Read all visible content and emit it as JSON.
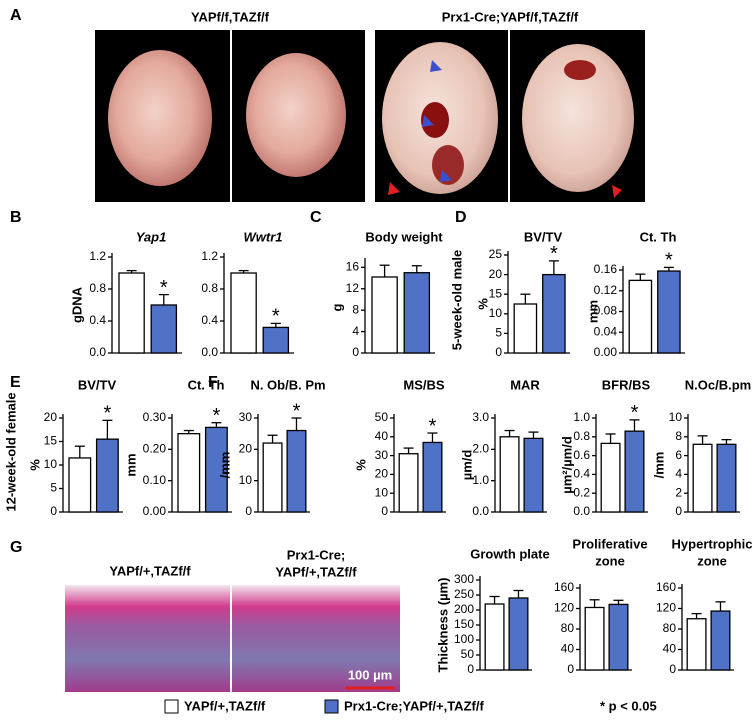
{
  "panel_labels": [
    "A",
    "B",
    "C",
    "D",
    "E",
    "F",
    "G"
  ],
  "photo_labels": {
    "a_control": "YAPf/f,TAZf/f",
    "a_mutant": "Prx1-Cre;YAPf/f,TAZf/f",
    "g_control": "YAPf/+,TAZf/f",
    "g_mutant": [
      "Prx1-Cre;",
      "YAPf/+,TAZf/f"
    ],
    "scale_bar": "100 µm"
  },
  "row_labels": [
    "5-week-old male",
    "12-week-old female"
  ],
  "legend": {
    "entries": [
      {
        "name": "YAPf/+,TAZf/f",
        "color": "#ffffff"
      },
      {
        "name": "Prx1-Cre;YAPf/+,TAZf/f",
        "color": "#4f72c6"
      }
    ],
    "note": "* p < 0.05"
  },
  "chart_data": [
    {
      "type": "bar",
      "title": "Yap1",
      "title_italic": true,
      "ylabel": "gDNA",
      "values": [
        1.0,
        0.6
      ],
      "errors": [
        0.03,
        0.13
      ],
      "annotations": [
        null,
        "*"
      ],
      "ylim": [
        0,
        1.2
      ],
      "yticks": [
        {
          "value": 0,
          "label": "0.0"
        },
        0.4,
        0.8,
        1.2
      ]
    },
    {
      "type": "bar",
      "title": "Wwtr1",
      "title_italic": true,
      "values": [
        1.0,
        0.32
      ],
      "errors": [
        0.03,
        0.05
      ],
      "annotations": [
        null,
        "*"
      ],
      "ylim": [
        0,
        1.2
      ],
      "yticks": [
        {
          "value": 0,
          "label": "0.0"
        },
        0.4,
        0.8,
        1.2
      ]
    },
    {
      "type": "bar",
      "title": "Body weight",
      "ylabel": "g",
      "values": [
        14.2,
        15.0
      ],
      "errors": [
        2.2,
        1.3
      ],
      "annotations": [
        null,
        null
      ],
      "ylim": [
        0,
        17
      ],
      "yticks": [
        0,
        4,
        8,
        12,
        16
      ]
    },
    {
      "type": "bar",
      "title": "BV/TV",
      "ylabel": "%",
      "values": [
        12.5,
        20
      ],
      "errors": [
        2.5,
        3.5
      ],
      "annotations": [
        null,
        "*"
      ],
      "ylim": [
        0,
        25
      ],
      "yticks": [
        0,
        5,
        10,
        15,
        20,
        25
      ]
    },
    {
      "type": "bar",
      "title": "Ct. Th",
      "ylabel": "mm",
      "values": [
        0.14,
        0.158
      ],
      "errors": [
        0.012,
        0.007
      ],
      "annotations": [
        null,
        "*"
      ],
      "ylim": [
        0,
        0.16
      ],
      "yticks": [
        {
          "value": 0,
          "label": "0.00"
        },
        0.04,
        0.08,
        0.12,
        0.16
      ]
    },
    {
      "type": "bar",
      "title": "BV/TV",
      "ylabel": "%",
      "values": [
        11.5,
        15.5
      ],
      "errors": [
        2.5,
        4
      ],
      "annotations": [
        null,
        "*"
      ],
      "ylim": [
        0,
        20
      ],
      "yticks": [
        0,
        5,
        10,
        15,
        20
      ]
    },
    {
      "type": "bar",
      "title": "Ct. Th",
      "ylabel": "mm",
      "values": [
        0.25,
        0.27
      ],
      "errors": [
        0.01,
        0.015
      ],
      "annotations": [
        null,
        "*"
      ],
      "ylim": [
        0,
        0.3
      ],
      "yticks": [
        {
          "value": 0,
          "label": "0.00"
        },
        {
          "value": 0.1,
          "label": "0.10"
        },
        {
          "value": 0.2,
          "label": "0.20"
        },
        {
          "value": 0.3,
          "label": "0.30"
        }
      ]
    },
    {
      "type": "bar",
      "title": "N. Ob/B. Pm",
      "ylabel": "/mm",
      "values": [
        22,
        26
      ],
      "errors": [
        2.5,
        4
      ],
      "annotations": [
        null,
        "*"
      ],
      "ylim": [
        0,
        30
      ],
      "yticks": [
        0,
        10,
        20,
        30
      ]
    },
    {
      "type": "bar",
      "title": "MS/BS",
      "ylabel": "%",
      "values": [
        31,
        37
      ],
      "errors": [
        3,
        5
      ],
      "annotations": [
        null,
        "*"
      ],
      "ylim": [
        0,
        50
      ],
      "yticks": [
        0,
        10,
        20,
        30,
        40,
        50
      ]
    },
    {
      "type": "bar",
      "title": "MAR",
      "ylabel": "µm/d",
      "values": [
        2.4,
        2.35
      ],
      "errors": [
        0.2,
        0.2
      ],
      "annotations": [
        null,
        null
      ],
      "ylim": [
        0,
        3
      ],
      "yticks": [
        {
          "value": 0,
          "label": "0.0"
        },
        {
          "value": 1,
          "label": "1.0"
        },
        {
          "value": 2,
          "label": "2.0"
        },
        {
          "value": 3,
          "label": "3.0"
        }
      ]
    },
    {
      "type": "bar",
      "title": "BFR/BS",
      "ylabel": "µm²/µm/d",
      "values": [
        0.73,
        0.86
      ],
      "errors": [
        0.1,
        0.12
      ],
      "annotations": [
        null,
        "*"
      ],
      "ylim": [
        0,
        1
      ],
      "yticks": [
        {
          "value": 0,
          "label": "0.0"
        },
        0.2,
        0.4,
        0.6,
        0.8,
        {
          "value": 1,
          "label": "1.0"
        }
      ]
    },
    {
      "type": "bar",
      "title": "N.Oc/B.pm",
      "ylabel": "/mm",
      "values": [
        7.2,
        7.2
      ],
      "errors": [
        0.9,
        0.5
      ],
      "annotations": [
        null,
        null
      ],
      "ylim": [
        0,
        10
      ],
      "yticks": [
        0,
        2,
        4,
        6,
        8,
        10
      ]
    },
    {
      "type": "bar",
      "title": [
        "Growth plate"
      ],
      "ylabel": "Thickness (µm)",
      "values": [
        220,
        240
      ],
      "errors": [
        25,
        25
      ],
      "annotations": [
        null,
        null
      ],
      "ylim": [
        0,
        300
      ],
      "yticks": [
        0,
        50,
        100,
        150,
        200,
        250,
        300
      ]
    },
    {
      "type": "bar",
      "title": [
        "Proliferative",
        "zone"
      ],
      "values": [
        122,
        128
      ],
      "errors": [
        15,
        8
      ],
      "annotations": [
        null,
        null
      ],
      "ylim": [
        0,
        160
      ],
      "yticks": [
        0,
        40,
        80,
        120,
        160
      ]
    },
    {
      "type": "bar",
      "title": [
        "Hypertrophic",
        "zone"
      ],
      "values": [
        100,
        115
      ],
      "errors": [
        10,
        18
      ],
      "annotations": [
        null,
        null
      ],
      "ylim": [
        0,
        160
      ],
      "yticks": [
        0,
        40,
        80,
        120,
        160
      ]
    }
  ]
}
